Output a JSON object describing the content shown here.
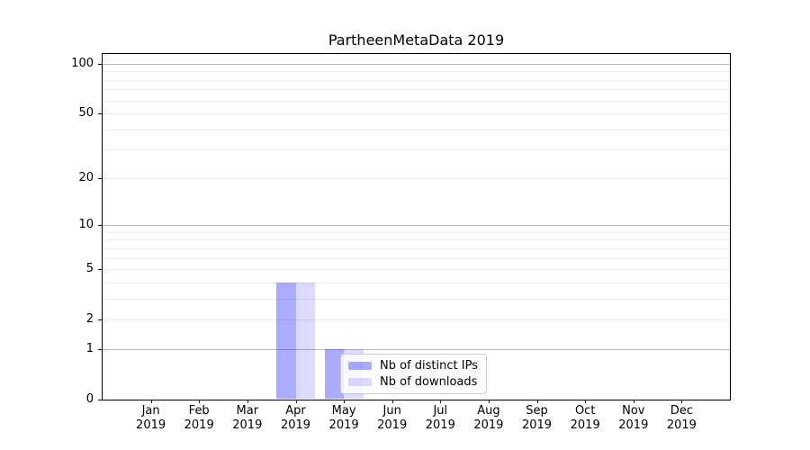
{
  "title": "PartheenMetaData 2019",
  "chart_data": {
    "type": "bar",
    "title": "PartheenMetaData 2019",
    "categories": [
      "Jan",
      "Feb",
      "Mar",
      "Apr",
      "May",
      "Jun",
      "Jul",
      "Aug",
      "Sep",
      "Oct",
      "Nov",
      "Dec"
    ],
    "category_sublabel": "2019",
    "series": [
      {
        "name": "Nb of distinct IPs",
        "color": "rgba(0,0,255,0.33)",
        "values": [
          0,
          0,
          0,
          4,
          1,
          0,
          0,
          0,
          0,
          0,
          0,
          0
        ]
      },
      {
        "name": "Nb of downloads",
        "color": "rgba(0,0,255,0.14)",
        "values": [
          0,
          0,
          0,
          4,
          1,
          0,
          0,
          0,
          0,
          0,
          0,
          0
        ]
      }
    ],
    "xlabel": "",
    "ylabel": "",
    "yscale": "log1p",
    "ylim": [
      0,
      114.3
    ],
    "y_tick_values": [
      0,
      1,
      2,
      5,
      10,
      20,
      50,
      100
    ],
    "y_major_grid_values": [
      1,
      10,
      100
    ],
    "y_minor_grid_values": [
      2,
      3,
      4,
      5,
      6,
      7,
      8,
      9,
      20,
      30,
      40,
      50,
      60,
      70,
      80,
      90
    ],
    "grid": true,
    "legend_position": "lower-center",
    "colors": {
      "major_grid": "#b9b9b9",
      "minor_grid": "#ececec",
      "axis": "#000000",
      "legend_border": "#cccccc"
    }
  }
}
